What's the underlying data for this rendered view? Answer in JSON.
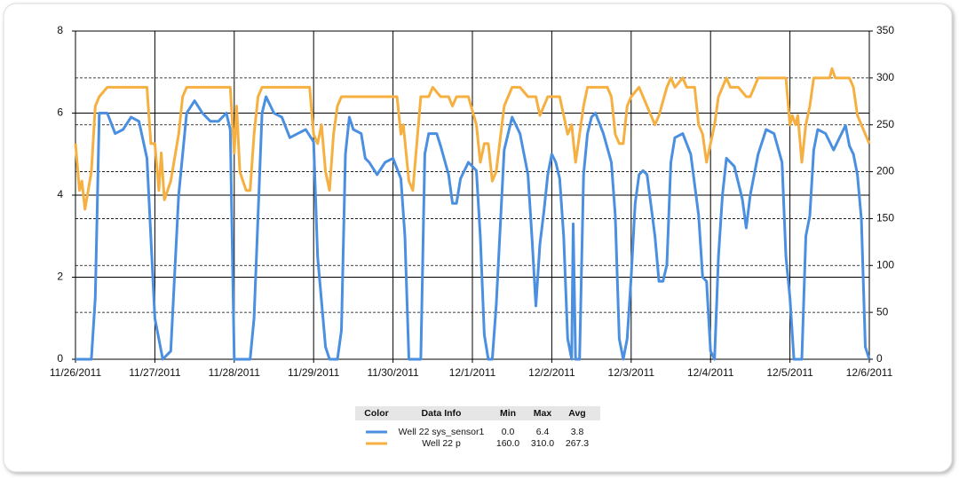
{
  "chart_data": {
    "type": "line",
    "xlim": [
      0,
      10
    ],
    "xticks": [
      {
        "value": 0,
        "label": "11/26/2011"
      },
      {
        "value": 1,
        "label": "11/27/2011"
      },
      {
        "value": 2,
        "label": "11/28/2011"
      },
      {
        "value": 3,
        "label": "11/29/2011"
      },
      {
        "value": 4,
        "label": "11/30/2011"
      },
      {
        "value": 5,
        "label": "12/1/2011"
      },
      {
        "value": 6,
        "label": "12/2/2011"
      },
      {
        "value": 7,
        "label": "12/3/2011"
      },
      {
        "value": 8,
        "label": "12/4/2011"
      },
      {
        "value": 9,
        "label": "12/5/2011"
      },
      {
        "value": 10,
        "label": "12/6/2011"
      }
    ],
    "ylim": [
      0,
      8
    ],
    "yticks": [
      0,
      2,
      4,
      6,
      8
    ],
    "y2lim": [
      0,
      350
    ],
    "y2ticks": [
      0,
      50,
      100,
      150,
      200,
      250,
      300,
      350
    ],
    "grid": true,
    "series": [
      {
        "name": "Well 22 sys_sensor1",
        "color": "#4a8fe0",
        "axis": "y",
        "x": [
          0,
          0.1,
          0.2,
          0.25,
          0.3,
          0.4,
          0.5,
          0.6,
          0.7,
          0.8,
          0.9,
          1.0,
          1.1,
          1.2,
          1.3,
          1.4,
          1.5,
          1.6,
          1.7,
          1.8,
          1.9,
          1.95,
          2.0,
          2.1,
          2.2,
          2.25,
          2.35,
          2.4,
          2.5,
          2.6,
          2.7,
          2.8,
          2.9,
          3.0,
          3.05,
          3.15,
          3.2,
          3.3,
          3.35,
          3.4,
          3.45,
          3.5,
          3.6,
          3.65,
          3.7,
          3.8,
          3.9,
          4.0,
          4.1,
          4.15,
          4.2,
          4.3,
          4.35,
          4.4,
          4.45,
          4.55,
          4.6,
          4.7,
          4.75,
          4.8,
          4.85,
          4.95,
          5.05,
          5.1,
          5.15,
          5.2,
          5.25,
          5.3,
          5.4,
          5.5,
          5.6,
          5.7,
          5.75,
          5.8,
          5.85,
          5.9,
          5.95,
          6.0,
          6.05,
          6.1,
          6.15,
          6.2,
          6.25,
          6.27,
          6.3,
          6.35,
          6.4,
          6.45,
          6.5,
          6.55,
          6.65,
          6.75,
          6.8,
          6.85,
          6.9,
          6.95,
          7.0,
          7.05,
          7.1,
          7.15,
          7.2,
          7.3,
          7.35,
          7.4,
          7.45,
          7.5,
          7.55,
          7.65,
          7.75,
          7.85,
          7.9,
          7.95,
          8.0,
          8.05,
          8.1,
          8.15,
          8.2,
          8.3,
          8.4,
          8.45,
          8.5,
          8.6,
          8.7,
          8.8,
          8.9,
          8.95,
          9.0,
          9.05,
          9.1,
          9.15,
          9.2,
          9.25,
          9.3,
          9.35,
          9.45,
          9.55,
          9.6,
          9.7,
          9.75,
          9.8,
          9.85,
          9.9,
          9.95,
          10.0
        ],
        "values": [
          0,
          0,
          0,
          1.5,
          6.0,
          6.0,
          5.5,
          5.6,
          5.9,
          5.8,
          4.9,
          1.0,
          0,
          0.2,
          4.0,
          6.0,
          6.3,
          6.0,
          5.8,
          5.8,
          6.0,
          5.6,
          0,
          0,
          0,
          1.0,
          6.0,
          6.4,
          6.0,
          5.9,
          5.4,
          5.5,
          5.6,
          5.3,
          2.5,
          0.3,
          0,
          0,
          0.7,
          5.0,
          5.9,
          5.6,
          5.5,
          4.9,
          4.8,
          4.5,
          4.8,
          4.9,
          4.4,
          3.0,
          0,
          0,
          0,
          5.0,
          5.5,
          5.5,
          5.2,
          4.5,
          3.8,
          3.8,
          4.4,
          4.8,
          4.6,
          3.0,
          0.6,
          0,
          0,
          1.3,
          5.1,
          5.9,
          5.5,
          4.5,
          3.0,
          1.3,
          2.8,
          3.6,
          4.5,
          5.0,
          4.8,
          4.4,
          3.0,
          0.5,
          0,
          3.3,
          0,
          0,
          4.5,
          5.5,
          5.9,
          6.0,
          5.5,
          4.8,
          3.5,
          0.5,
          0,
          0.5,
          2.0,
          3.8,
          4.5,
          4.6,
          4.5,
          3.0,
          1.9,
          1.9,
          2.3,
          4.8,
          5.4,
          5.5,
          5.0,
          3.5,
          2.0,
          1.9,
          0.2,
          0,
          2.5,
          4.0,
          4.9,
          4.7,
          3.9,
          3.2,
          4.0,
          5.0,
          5.6,
          5.5,
          4.8,
          2.5,
          1.5,
          0,
          0,
          0,
          3.0,
          3.5,
          5.1,
          5.6,
          5.5,
          5.1,
          5.3,
          5.7,
          5.2,
          5.0,
          4.5,
          3.4,
          0.3,
          0
        ]
      },
      {
        "name": "Well 22 p",
        "color": "#f5b041",
        "axis": "y2",
        "x": [
          0,
          0.05,
          0.08,
          0.12,
          0.2,
          0.25,
          0.3,
          0.4,
          0.9,
          0.95,
          1.0,
          1.05,
          1.08,
          1.12,
          1.2,
          1.3,
          1.35,
          1.4,
          1.95,
          2.0,
          2.03,
          2.07,
          2.15,
          2.2,
          2.25,
          2.3,
          2.35,
          2.95,
          3.0,
          3.05,
          3.1,
          3.15,
          3.2,
          3.25,
          3.3,
          3.35,
          4.05,
          4.1,
          4.13,
          4.2,
          4.25,
          4.3,
          4.35,
          4.45,
          4.5,
          4.6,
          4.7,
          4.75,
          4.8,
          4.95,
          5.05,
          5.1,
          5.15,
          5.2,
          5.25,
          5.3,
          5.4,
          5.5,
          5.6,
          5.7,
          5.8,
          5.85,
          5.9,
          5.95,
          6.1,
          6.15,
          6.2,
          6.25,
          6.3,
          6.35,
          6.4,
          6.45,
          6.7,
          6.75,
          6.8,
          6.85,
          6.9,
          6.95,
          7.0,
          7.1,
          7.15,
          7.25,
          7.3,
          7.35,
          7.45,
          7.5,
          7.55,
          7.65,
          7.7,
          7.8,
          7.85,
          7.9,
          7.95,
          8.05,
          8.1,
          8.2,
          8.25,
          8.35,
          8.45,
          8.5,
          8.6,
          8.95,
          9.0,
          9.03,
          9.07,
          9.1,
          9.15,
          9.2,
          9.25,
          9.3,
          9.5,
          9.53,
          9.57,
          9.75,
          9.8,
          9.85,
          9.95,
          10.0
        ],
        "values": [
          230,
          180,
          190,
          160,
          200,
          270,
          280,
          290,
          290,
          230,
          230,
          180,
          220,
          170,
          190,
          240,
          280,
          290,
          290,
          220,
          270,
          200,
          180,
          180,
          240,
          280,
          290,
          290,
          240,
          230,
          250,
          200,
          180,
          240,
          270,
          280,
          280,
          240,
          250,
          190,
          180,
          230,
          280,
          280,
          290,
          280,
          280,
          270,
          280,
          280,
          250,
          210,
          230,
          230,
          190,
          200,
          270,
          290,
          290,
          280,
          280,
          260,
          270,
          280,
          280,
          260,
          240,
          250,
          210,
          240,
          270,
          290,
          290,
          280,
          240,
          230,
          230,
          270,
          280,
          290,
          280,
          260,
          250,
          260,
          290,
          300,
          290,
          300,
          290,
          290,
          250,
          240,
          210,
          250,
          280,
          300,
          290,
          290,
          280,
          280,
          300,
          300,
          250,
          260,
          250,
          260,
          210,
          250,
          270,
          300,
          300,
          310,
          300,
          300,
          290,
          260,
          240,
          230
        ]
      }
    ]
  },
  "legend_table": {
    "header": [
      "Color",
      "Data Info",
      "Min",
      "Max",
      "Avg"
    ],
    "rows": [
      [
        "Well 22 sys_sensor1",
        "0.0",
        "6.4",
        "3.8"
      ],
      [
        "Well 22 p",
        "160.0",
        "310.0",
        "267.3"
      ]
    ]
  }
}
